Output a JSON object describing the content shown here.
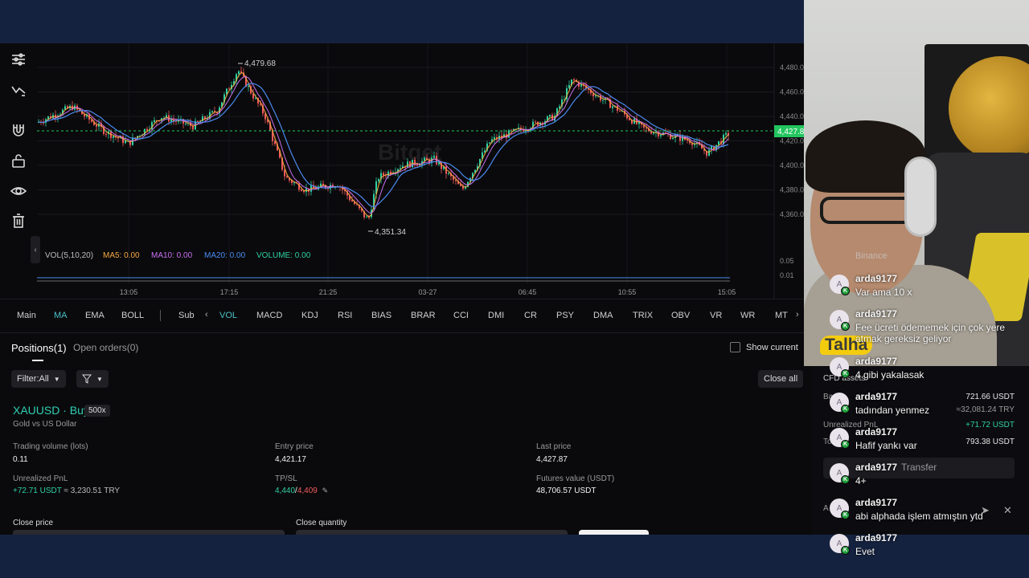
{
  "chart": {
    "price_labels": [
      "4,480.00",
      "4,460.00",
      "4,440.00",
      "4,420.00",
      "4,400.00",
      "4,380.00",
      "4,360.00"
    ],
    "volume_labels": [
      "0.05",
      "0.01"
    ],
    "current_price_tag": "4,427.8",
    "high_annotation": "4,479.68",
    "low_annotation": "4,351.34",
    "time_labels": [
      "13:05",
      "17:15",
      "21:25",
      "03-27",
      "06:45",
      "10:55",
      "15:05"
    ],
    "watermark": "Bitget",
    "volume_legend": {
      "vol": "VOL(5,10,20)",
      "ma5": "MA5: 0.00",
      "ma10": "MA10: 0.00",
      "ma20": "MA20: 0.00",
      "volume": "VOLUME: 0.00"
    },
    "colors": {
      "up": "#2fd0a0",
      "down": "#f05a5a",
      "ma5": "#f5a742",
      "ma10": "#c870f0",
      "ma20": "#4a8af0",
      "price_tag": "#22c55e"
    }
  },
  "indicators": {
    "main_label": "Main",
    "main": [
      "MA",
      "EMA",
      "BOLL"
    ],
    "sub_label": "Sub",
    "sub": [
      "VOL",
      "MACD",
      "KDJ",
      "RSI",
      "BIAS",
      "BRAR",
      "CCI",
      "DMI",
      "CR",
      "PSY",
      "DMA",
      "TRIX",
      "OBV",
      "VR",
      "WR",
      "MT"
    ]
  },
  "positions": {
    "tab_positions": "Positions(1)",
    "tab_open_orders": "Open orders(0)",
    "show_current": "Show current",
    "filter_label": "Filter:All",
    "close_all": "Close all",
    "symbol_title": "XAUUSD · Buy",
    "leverage": "500x",
    "subtitle": "Gold vs US Dollar",
    "fields": {
      "trading_volume_label": "Trading volume (lots)",
      "trading_volume_value": "0.11",
      "entry_price_label": "Entry price",
      "entry_price_value": "4,421.17",
      "last_price_label": "Last price",
      "last_price_value": "4,427.87",
      "pnl_label": "Unrealized PnL",
      "pnl_value": "+72.71 USDT",
      "pnl_try": "≈ 3,230.51 TRY",
      "tpsl_label": "TP/SL",
      "tp_value": "4,440",
      "sl_value": "4,409",
      "futures_label": "Futures value (USDT)",
      "futures_value": "48,706.57 USDT",
      "close_price_label": "Close price",
      "close_qty_label": "Close quantity"
    }
  },
  "side_panel": {
    "cfd_assets": "CFD assets",
    "row1_label": "Ba",
    "balance": "721.66 USDT",
    "balance_try": "≈32,081.24 TRY",
    "unrealized_label": "Unrealized PnL",
    "unrealized_value": "+71.72 USDT",
    "total_label": "To",
    "total_value": "793.38 USDT",
    "transfer": "Transfer",
    "assets_label": "A"
  },
  "stream": {
    "streamer_name": "Talha",
    "ghost_text": "Binance"
  },
  "chat": [
    {
      "user": "arda9177",
      "text": "Var ama 10 x",
      "avatar": "A"
    },
    {
      "user": "arda9177",
      "text": "Fee ücreti ödememek için çok yere atmak gereksiz geliyor",
      "avatar": "A"
    },
    {
      "user": "arda9177",
      "text": "4 gibi yakalasak",
      "avatar": "A"
    },
    {
      "user": "arda9177",
      "text": "tadından yenmez",
      "avatar": "A"
    },
    {
      "user": "arda9177",
      "text": "Hafif yankı var",
      "avatar": "A"
    },
    {
      "user": "arda9177",
      "text": "4+",
      "avatar": "A"
    },
    {
      "user": "arda9177",
      "text": "abi alphada işlem atmıştın ytd",
      "avatar": "A"
    },
    {
      "user": "arda9177",
      "text": "Evet",
      "avatar": "A"
    }
  ]
}
